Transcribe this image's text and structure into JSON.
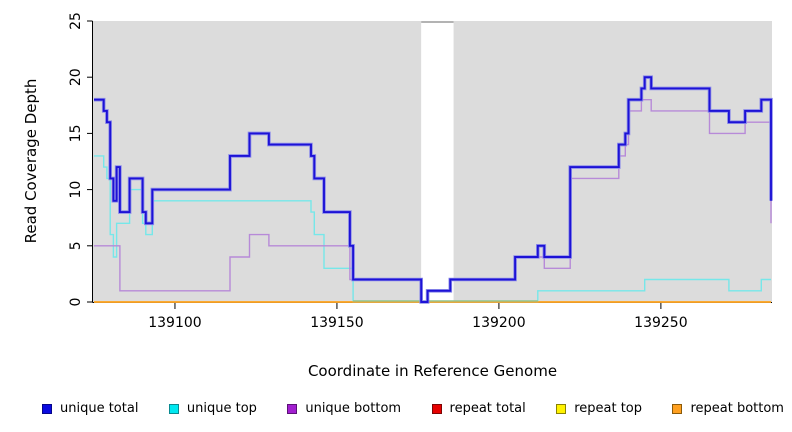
{
  "figure": {
    "x_axis_label": "Coordinate in Reference Genome",
    "y_axis_label": "Read Coverage Depth"
  },
  "chart_data": {
    "type": "line",
    "subtype": "step",
    "title": "",
    "xlabel": "Coordinate in Reference Genome",
    "ylabel": "Read Coverage Depth",
    "xlim": [
      139075,
      139284
    ],
    "ylim": [
      0,
      25
    ],
    "x_ticks": [
      139100,
      139150,
      139200,
      139250
    ],
    "y_ticks": [
      0,
      5,
      10,
      15,
      20,
      25
    ],
    "grid": false,
    "legend_position": "bottom",
    "plot_bg_color": "#dcdcdc",
    "gap_region": {
      "x_start": 139176,
      "x_end": 139186,
      "color": "#ffffff"
    },
    "zero_overlap_segment": {
      "x_start": 139155,
      "x_end": 139212,
      "color": "#8cc48f",
      "note_visible_as": "green line where unique top sits at 0 on repeat bottom line"
    },
    "series": [
      {
        "name": "repeat total",
        "color": "#de1f1f",
        "steps": [
          [
            139075,
            0
          ]
        ],
        "x_end": 139284
      },
      {
        "name": "repeat top",
        "color": "#ffff2e",
        "steps": [
          [
            139075,
            0
          ]
        ],
        "x_end": 139284
      },
      {
        "name": "repeat bottom",
        "color": "#ffa428",
        "steps": [
          [
            139075,
            0
          ]
        ],
        "x_end": 139284
      },
      {
        "name": "unique bottom",
        "color": "#b78ad8",
        "steps": [
          [
            139075,
            5
          ],
          [
            139083,
            1
          ],
          [
            139117,
            4
          ],
          [
            139123,
            6
          ],
          [
            139129,
            5
          ],
          [
            139154,
            2
          ],
          [
            139176,
            0
          ],
          [
            139178,
            1
          ],
          [
            139185,
            2
          ],
          [
            139205,
            4
          ],
          [
            139214,
            3
          ],
          [
            139222,
            11
          ],
          [
            139237,
            13
          ],
          [
            139239,
            14
          ],
          [
            139240,
            17
          ],
          [
            139244,
            18
          ],
          [
            139247,
            17
          ],
          [
            139265,
            15
          ],
          [
            139276,
            16
          ],
          [
            139284,
            7
          ]
        ],
        "x_end": 139284
      },
      {
        "name": "unique top",
        "color": "#76e7e9",
        "steps": [
          [
            139075,
            13
          ],
          [
            139078,
            12
          ],
          [
            139079,
            11
          ],
          [
            139080,
            6
          ],
          [
            139081,
            4
          ],
          [
            139082,
            7
          ],
          [
            139086,
            10
          ],
          [
            139090,
            7
          ],
          [
            139091,
            6
          ],
          [
            139093,
            9
          ],
          [
            139142,
            8
          ],
          [
            139143,
            6
          ],
          [
            139146,
            3
          ],
          [
            139155,
            0
          ],
          [
            139212,
            1
          ],
          [
            139245,
            2
          ],
          [
            139271,
            1
          ],
          [
            139281,
            2
          ]
        ],
        "x_end": 139284
      },
      {
        "name": "unique total",
        "color": "#1d12d6",
        "halo_color": "#8e8ee9",
        "steps": [
          [
            139075,
            18
          ],
          [
            139078,
            17
          ],
          [
            139079,
            16
          ],
          [
            139080,
            11
          ],
          [
            139081,
            9
          ],
          [
            139082,
            12
          ],
          [
            139083,
            8
          ],
          [
            139086,
            11
          ],
          [
            139090,
            8
          ],
          [
            139091,
            7
          ],
          [
            139093,
            10
          ],
          [
            139117,
            13
          ],
          [
            139123,
            15
          ],
          [
            139129,
            14
          ],
          [
            139142,
            13
          ],
          [
            139143,
            11
          ],
          [
            139146,
            8
          ],
          [
            139154,
            5
          ],
          [
            139155,
            2
          ],
          [
            139176,
            0
          ],
          [
            139178,
            1
          ],
          [
            139185,
            2
          ],
          [
            139205,
            4
          ],
          [
            139212,
            5
          ],
          [
            139214,
            4
          ],
          [
            139222,
            12
          ],
          [
            139237,
            14
          ],
          [
            139239,
            15
          ],
          [
            139240,
            18
          ],
          [
            139244,
            19
          ],
          [
            139245,
            20
          ],
          [
            139247,
            19
          ],
          [
            139265,
            17
          ],
          [
            139271,
            16
          ],
          [
            139276,
            17
          ],
          [
            139281,
            18
          ],
          [
            139284,
            9
          ]
        ],
        "x_end": 139284
      }
    ]
  },
  "legend": {
    "items": [
      {
        "label": "unique total",
        "color": "#0a0ae0",
        "border": "#06068a"
      },
      {
        "label": "unique top",
        "color": "#00e8f0",
        "border": "#0a8a90"
      },
      {
        "label": "unique bottom",
        "color": "#a21fd0",
        "border": "#5c1277"
      },
      {
        "label": "repeat total",
        "color": "#e60000",
        "border": "#7c0505"
      },
      {
        "label": "repeat top",
        "color": "#fff200",
        "border": "#8a8205"
      },
      {
        "label": "repeat bottom",
        "color": "#ffa020",
        "border": "#8a5a0a"
      }
    ]
  }
}
